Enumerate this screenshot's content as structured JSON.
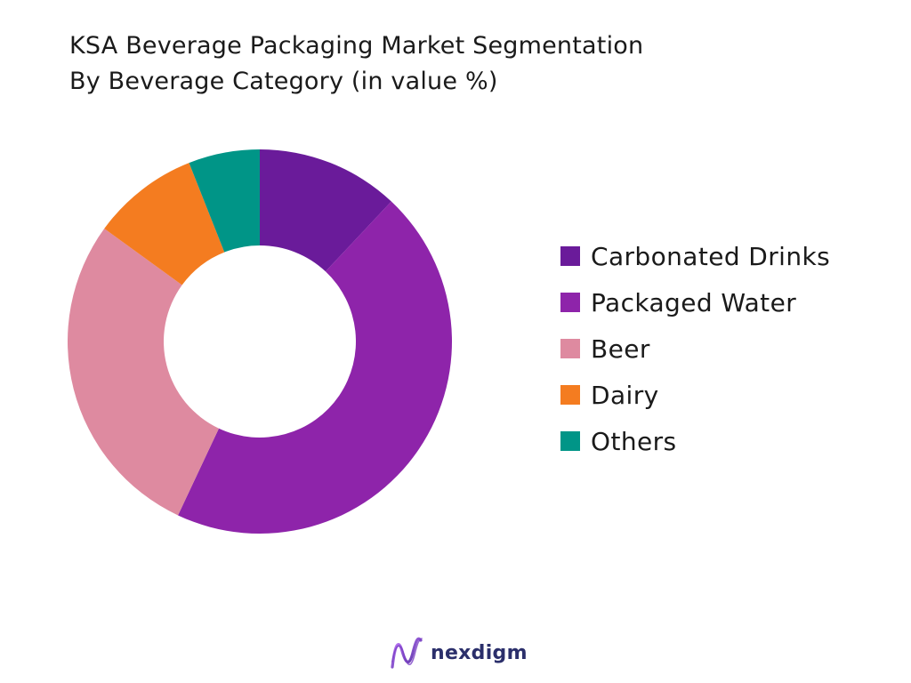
{
  "title_lines": [
    "KSA Beverage Packaging Market Segmentation",
    "By Beverage Category (in value %)"
  ],
  "chart_data": {
    "type": "pie",
    "donut": true,
    "title": "KSA Beverage Packaging Market Segmentation By Beverage Category (in value %)",
    "unit": "%",
    "categories": [
      "Carbonated Drinks",
      "Packaged Water",
      "Beer",
      "Dairy",
      "Others"
    ],
    "values": [
      12,
      45,
      28,
      9,
      6
    ],
    "colors": [
      "#6a1b9a",
      "#8e24aa",
      "#de8aa0",
      "#f47c20",
      "#009587"
    ],
    "legend_position": "right",
    "start": "top",
    "direction": "clockwise"
  },
  "brand": {
    "name": "nexdigm",
    "logo_icon": "nexdigm-wave-logo-icon"
  }
}
